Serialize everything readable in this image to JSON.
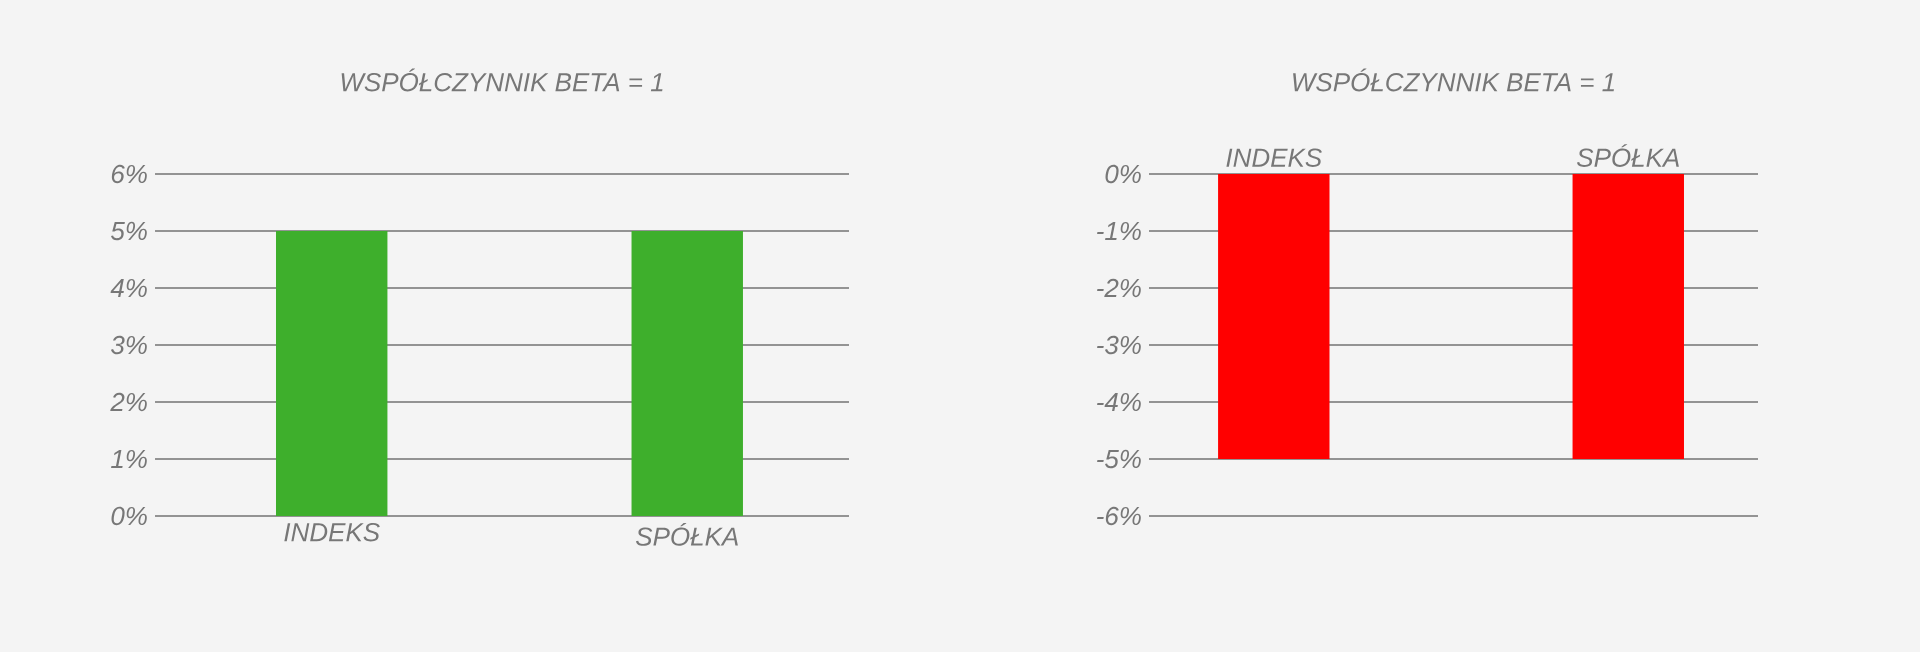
{
  "chart_data": [
    {
      "type": "bar",
      "title": "WSPÓŁCZYNNIK BETA = 1",
      "categories": [
        "INDEKS",
        "SPÓŁKA"
      ],
      "values": [
        5,
        5
      ],
      "color": "#3eaf2c",
      "ylim": [
        0,
        6
      ],
      "yticks": [
        {
          "value": 0,
          "label": "0%"
        },
        {
          "value": 1,
          "label": "1%"
        },
        {
          "value": 2,
          "label": "2%"
        },
        {
          "value": 3,
          "label": "3%"
        },
        {
          "value": 4,
          "label": "4%"
        },
        {
          "value": 5,
          "label": "5%"
        },
        {
          "value": 6,
          "label": "6%"
        }
      ],
      "grid": "y"
    },
    {
      "type": "bar",
      "title": "WSPÓŁCZYNNIK BETA = 1",
      "categories": [
        "INDEKS",
        "SPÓŁKA"
      ],
      "values": [
        -5,
        -5
      ],
      "color": "#ff0000",
      "ylim": [
        -6,
        0
      ],
      "yticks": [
        {
          "value": -6,
          "label": "-6%"
        },
        {
          "value": -5,
          "label": "-5%"
        },
        {
          "value": -4,
          "label": "-4%"
        },
        {
          "value": -3,
          "label": "-3%"
        },
        {
          "value": -2,
          "label": "-2%"
        },
        {
          "value": -1,
          "label": "-1%"
        },
        {
          "value": 0,
          "label": "0%"
        }
      ],
      "grid": "y"
    }
  ]
}
